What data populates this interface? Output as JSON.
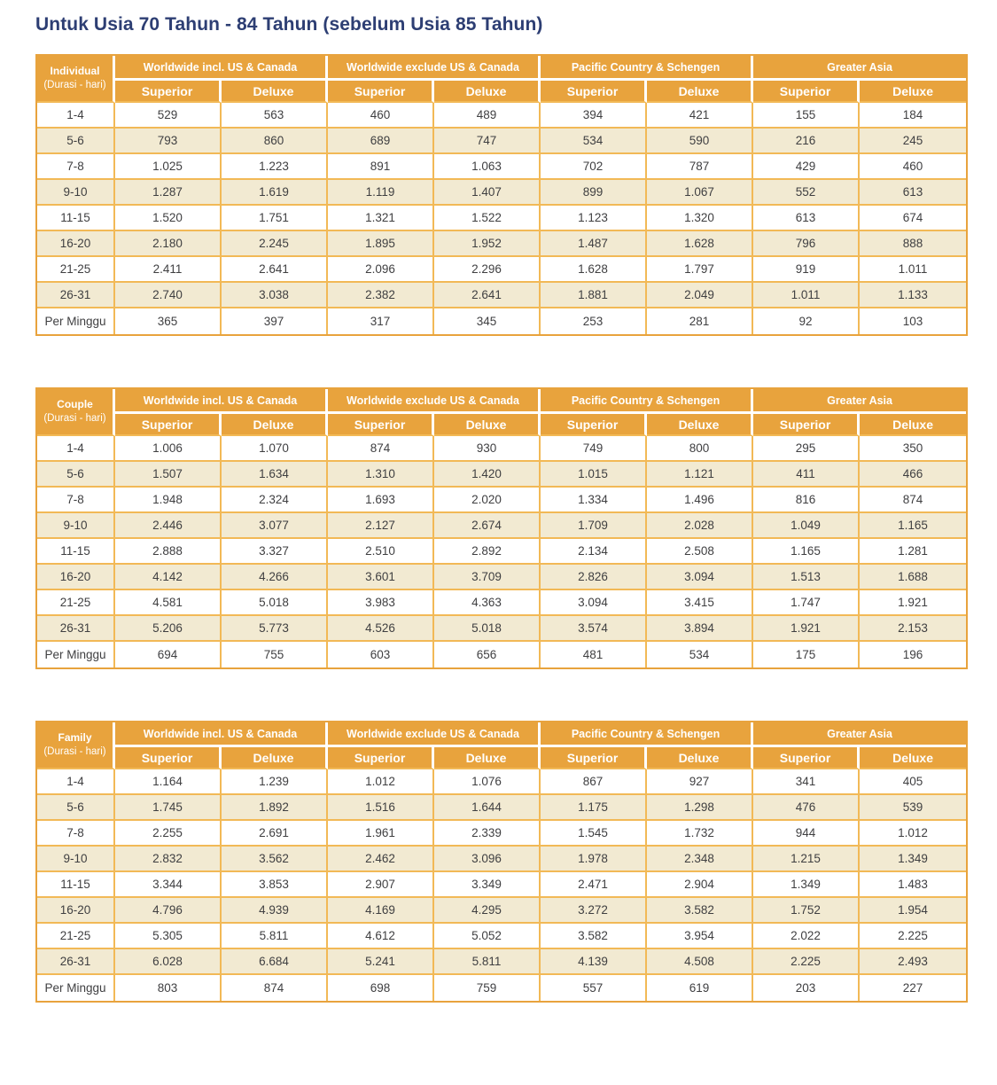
{
  "page": {
    "title": "Untuk Usia 70 Tahun - 84 Tahun (sebelum Usia 85 Tahun)"
  },
  "colors": {
    "header_orange": "#E8A33D",
    "grid_orange": "#F2B956",
    "row_cream": "#F2EAD2",
    "title_navy": "#2D3E73",
    "cell_text": "#3F3F41"
  },
  "column_groups": [
    "Worldwide incl. US & Canada",
    "Worldwide exclude US & Canada",
    "Pacific Country & Schengen",
    "Greater Asia"
  ],
  "sub_headers": [
    "Superior",
    "Deluxe",
    "Superior",
    "Deluxe",
    "Superior",
    "Deluxe",
    "Superior",
    "Deluxe"
  ],
  "tables": [
    {
      "label": "Individual",
      "sublabel": "(Durasi - hari)",
      "rows": [
        {
          "duration": "1-4",
          "values": [
            "529",
            "563",
            "460",
            "489",
            "394",
            "421",
            "155",
            "184"
          ]
        },
        {
          "duration": "5-6",
          "values": [
            "793",
            "860",
            "689",
            "747",
            "534",
            "590",
            "216",
            "245"
          ]
        },
        {
          "duration": "7-8",
          "values": [
            "1.025",
            "1.223",
            "891",
            "1.063",
            "702",
            "787",
            "429",
            "460"
          ]
        },
        {
          "duration": "9-10",
          "values": [
            "1.287",
            "1.619",
            "1.119",
            "1.407",
            "899",
            "1.067",
            "552",
            "613"
          ]
        },
        {
          "duration": "11-15",
          "values": [
            "1.520",
            "1.751",
            "1.321",
            "1.522",
            "1.123",
            "1.320",
            "613",
            "674"
          ]
        },
        {
          "duration": "16-20",
          "values": [
            "2.180",
            "2.245",
            "1.895",
            "1.952",
            "1.487",
            "1.628",
            "796",
            "888"
          ]
        },
        {
          "duration": "21-25",
          "values": [
            "2.411",
            "2.641",
            "2.096",
            "2.296",
            "1.628",
            "1.797",
            "919",
            "1.011"
          ]
        },
        {
          "duration": "26-31",
          "values": [
            "2.740",
            "3.038",
            "2.382",
            "2.641",
            "1.881",
            "2.049",
            "1.011",
            "1.133"
          ]
        },
        {
          "duration": "Per Minggu",
          "values": [
            "365",
            "397",
            "317",
            "345",
            "253",
            "281",
            "92",
            "103"
          ]
        }
      ]
    },
    {
      "label": "Couple",
      "sublabel": "(Durasi - hari)",
      "rows": [
        {
          "duration": "1-4",
          "values": [
            "1.006",
            "1.070",
            "874",
            "930",
            "749",
            "800",
            "295",
            "350"
          ]
        },
        {
          "duration": "5-6",
          "values": [
            "1.507",
            "1.634",
            "1.310",
            "1.420",
            "1.015",
            "1.121",
            "411",
            "466"
          ]
        },
        {
          "duration": "7-8",
          "values": [
            "1.948",
            "2.324",
            "1.693",
            "2.020",
            "1.334",
            "1.496",
            "816",
            "874"
          ]
        },
        {
          "duration": "9-10",
          "values": [
            "2.446",
            "3.077",
            "2.127",
            "2.674",
            "1.709",
            "2.028",
            "1.049",
            "1.165"
          ]
        },
        {
          "duration": "11-15",
          "values": [
            "2.888",
            "3.327",
            "2.510",
            "2.892",
            "2.134",
            "2.508",
            "1.165",
            "1.281"
          ]
        },
        {
          "duration": "16-20",
          "values": [
            "4.142",
            "4.266",
            "3.601",
            "3.709",
            "2.826",
            "3.094",
            "1.513",
            "1.688"
          ]
        },
        {
          "duration": "21-25",
          "values": [
            "4.581",
            "5.018",
            "3.983",
            "4.363",
            "3.094",
            "3.415",
            "1.747",
            "1.921"
          ]
        },
        {
          "duration": "26-31",
          "values": [
            "5.206",
            "5.773",
            "4.526",
            "5.018",
            "3.574",
            "3.894",
            "1.921",
            "2.153"
          ]
        },
        {
          "duration": "Per Minggu",
          "values": [
            "694",
            "755",
            "603",
            "656",
            "481",
            "534",
            "175",
            "196"
          ]
        }
      ]
    },
    {
      "label": "Family",
      "sublabel": "(Durasi - hari)",
      "rows": [
        {
          "duration": "1-4",
          "values": [
            "1.164",
            "1.239",
            "1.012",
            "1.076",
            "867",
            "927",
            "341",
            "405"
          ]
        },
        {
          "duration": "5-6",
          "values": [
            "1.745",
            "1.892",
            "1.516",
            "1.644",
            "1.175",
            "1.298",
            "476",
            "539"
          ]
        },
        {
          "duration": "7-8",
          "values": [
            "2.255",
            "2.691",
            "1.961",
            "2.339",
            "1.545",
            "1.732",
            "944",
            "1.012"
          ]
        },
        {
          "duration": "9-10",
          "values": [
            "2.832",
            "3.562",
            "2.462",
            "3.096",
            "1.978",
            "2.348",
            "1.215",
            "1.349"
          ]
        },
        {
          "duration": "11-15",
          "values": [
            "3.344",
            "3.853",
            "2.907",
            "3.349",
            "2.471",
            "2.904",
            "1.349",
            "1.483"
          ]
        },
        {
          "duration": "16-20",
          "values": [
            "4.796",
            "4.939",
            "4.169",
            "4.295",
            "3.272",
            "3.582",
            "1.752",
            "1.954"
          ]
        },
        {
          "duration": "21-25",
          "values": [
            "5.305",
            "5.811",
            "4.612",
            "5.052",
            "3.582",
            "3.954",
            "2.022",
            "2.225"
          ]
        },
        {
          "duration": "26-31",
          "values": [
            "6.028",
            "6.684",
            "5.241",
            "5.811",
            "4.139",
            "4.508",
            "2.225",
            "2.493"
          ]
        },
        {
          "duration": "Per Minggu",
          "values": [
            "803",
            "874",
            "698",
            "759",
            "557",
            "619",
            "203",
            "227"
          ]
        }
      ]
    }
  ]
}
